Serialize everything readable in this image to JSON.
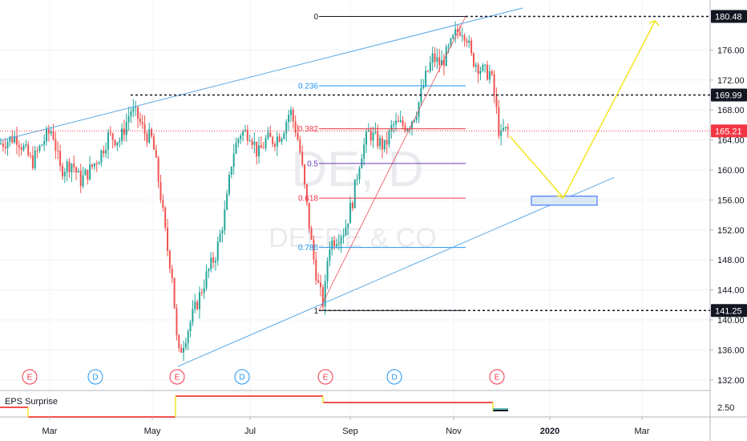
{
  "chart_data": {
    "type": "candlestick",
    "symbol_watermark": "DE, D",
    "company_watermark": "DEERE & CO",
    "y_axis": {
      "range": [
        130.8,
        181.6
      ],
      "ticks": [
        132.0,
        136.0,
        140.0,
        144.0,
        148.0,
        152.0,
        156.0,
        160.0,
        164.0,
        168.0,
        172.0,
        176.0
      ]
    },
    "x_axis": {
      "labels": [
        "Mar",
        "May",
        "Jul",
        "Sep",
        "Nov",
        "2020",
        "Mar"
      ]
    },
    "price_labels": [
      {
        "value": 180.48,
        "text": "180.48",
        "style": "black"
      },
      {
        "value": 169.99,
        "text": "169.99",
        "style": "black"
      },
      {
        "value": 165.21,
        "text": "165.21",
        "style": "red"
      },
      {
        "value": 141.25,
        "text": "141.25",
        "style": "black"
      }
    ],
    "fibonacci": {
      "high": 180.48,
      "low": 141.25,
      "levels": [
        {
          "label": "0",
          "value": 180.48,
          "color": "#131722"
        },
        {
          "label": "0.236",
          "value": 171.22,
          "color": "#2196f3"
        },
        {
          "label": "0.382",
          "value": 165.49,
          "color": "#f23645"
        },
        {
          "label": "0.5",
          "value": 160.87,
          "color": "#673ab7"
        },
        {
          "label": "0.618",
          "value": 156.24,
          "color": "#f23645"
        },
        {
          "label": "0.786",
          "value": 149.66,
          "color": "#2196f3"
        },
        {
          "label": "1",
          "value": 141.25,
          "color": "#131722"
        }
      ]
    },
    "candles_summary": {
      "start_price": 163.5,
      "low_may": 133.8,
      "high_jul": 170.0,
      "low_aug": 141.25,
      "high_nov": 180.48,
      "last": 165.21
    },
    "events": [
      "E",
      "D",
      "E",
      "D",
      "E",
      "D",
      "E"
    ],
    "indicator": {
      "name": "EPS Surprise",
      "tick": "2.50"
    },
    "colors": {
      "up": "#26a69a",
      "down": "#ef5350",
      "channel": "#5aa9e6",
      "projection": "#f5e62a",
      "earnings": "#f23645",
      "dividend": "#2196f3"
    }
  }
}
